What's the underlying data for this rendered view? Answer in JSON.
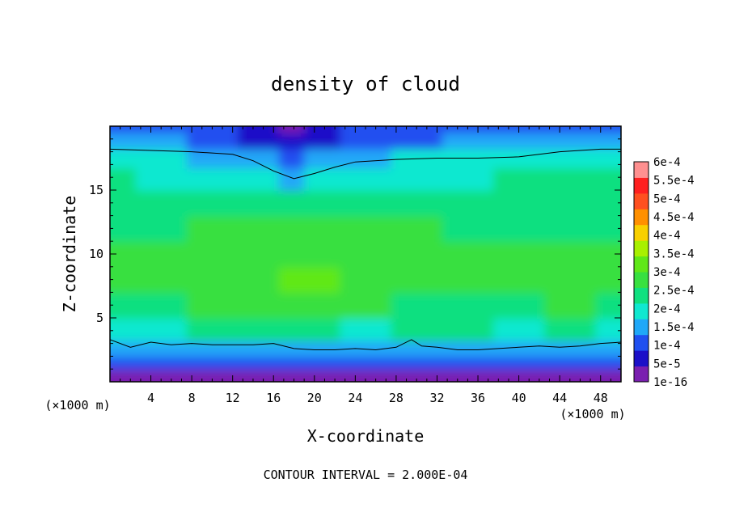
{
  "chart_data": {
    "type": "heatmap",
    "title": "density of cloud",
    "xlabel": "X-coordinate",
    "ylabel": "Z-coordinate",
    "x_unit_left": "(×1000 m)",
    "x_unit_right": "(×1000 m)",
    "footer": "CONTOUR INTERVAL = 2.000E-04",
    "xlim": [
      0,
      50
    ],
    "ylim": [
      0,
      20
    ],
    "x_ticks": [
      4,
      8,
      12,
      16,
      20,
      24,
      28,
      32,
      36,
      40,
      44,
      48
    ],
    "y_ticks": [
      5,
      10,
      15
    ],
    "colorbar": {
      "labels": [
        "1e-16",
        "5e-5",
        "1e-4",
        "1.5e-4",
        "2e-4",
        "2.5e-4",
        "3e-4",
        "3.5e-4",
        "4e-4",
        "4.5e-4",
        "5e-4",
        "5.5e-4",
        "6e-4"
      ],
      "values": [
        0,
        5e-05,
        0.0001,
        0.00015,
        0.0002,
        0.00025,
        0.0003,
        0.00035,
        0.0004,
        0.00045,
        0.0005,
        0.00055,
        0.0006
      ],
      "colors": [
        "#7a1fb0",
        "#1c10c8",
        "#2050f0",
        "#20a8f8",
        "#10e8d0",
        "#10e080",
        "#38e040",
        "#60e818",
        "#a8f000",
        "#f8d000",
        "#ff9000",
        "#ff5020",
        "#ff2020",
        "#ff9090"
      ]
    },
    "contour_levels": [
      0.0002
    ],
    "field_description_values": {
      "x": [
        0,
        5,
        10,
        15,
        18,
        20,
        25,
        30,
        35,
        40,
        45,
        50
      ],
      "z_rows": [
        {
          "z": 0.5,
          "values": [
            4e-05,
            3e-05,
            4e-05,
            4e-05,
            3e-05,
            4e-05,
            4e-05,
            3e-05,
            4e-05,
            4e-05,
            3e-05,
            4e-05
          ]
        },
        {
          "z": 1.5,
          "values": [
            0.00012,
            0.00011,
            0.00012,
            0.00012,
            0.00011,
            0.00012,
            0.00011,
            0.00012,
            0.00012,
            0.00011,
            0.00012,
            0.00012
          ]
        },
        {
          "z": 2.5,
          "values": [
            0.00018,
            0.00017,
            0.00018,
            0.00018,
            0.00017,
            0.00018,
            0.00018,
            0.00019,
            0.00018,
            0.00018,
            0.00018,
            0.00018
          ]
        },
        {
          "z": 4,
          "values": [
            0.00024,
            0.00024,
            0.00025,
            0.00025,
            0.00025,
            0.00025,
            0.00024,
            0.00025,
            0.00025,
            0.00024,
            0.00025,
            0.00024
          ]
        },
        {
          "z": 6,
          "values": [
            0.00028,
            0.00029,
            0.0003,
            0.0003,
            0.00031,
            0.00031,
            0.0003,
            0.00029,
            0.00029,
            0.00029,
            0.0003,
            0.00029
          ]
        },
        {
          "z": 8,
          "values": [
            0.0003,
            0.00032,
            0.00033,
            0.00032,
            0.00035,
            0.00036,
            0.00034,
            0.00032,
            0.00031,
            0.00031,
            0.00033,
            0.00031
          ]
        },
        {
          "z": 10,
          "values": [
            0.0003,
            0.00031,
            0.00032,
            0.00032,
            0.00033,
            0.00034,
            0.00033,
            0.00032,
            0.00031,
            0.00031,
            0.00031,
            0.0003
          ]
        },
        {
          "z": 12,
          "values": [
            0.00029,
            0.00029,
            0.0003,
            0.0003,
            0.0003,
            0.0003,
            0.0003,
            0.0003,
            0.00029,
            0.00029,
            0.00029,
            0.00029
          ]
        },
        {
          "z": 14,
          "values": [
            0.00027,
            0.00027,
            0.00027,
            0.00026,
            0.00025,
            0.00026,
            0.00027,
            0.00027,
            0.00027,
            0.00027,
            0.00027,
            0.00027
          ]
        },
        {
          "z": 16,
          "values": [
            0.00025,
            0.00024,
            0.00023,
            0.00021,
            0.00019,
            0.00021,
            0.00023,
            0.00024,
            0.00024,
            0.00025,
            0.00025,
            0.00025
          ]
        },
        {
          "z": 17.5,
          "values": [
            0.00022,
            0.00021,
            0.00019,
            0.00016,
            0.00013,
            0.00016,
            0.00019,
            0.0002,
            0.00021,
            0.00021,
            0.00022,
            0.00022
          ]
        },
        {
          "z": 19,
          "values": [
            0.00016,
            0.00015,
            0.00013,
            8e-05,
            6e-05,
            9e-05,
            0.00012,
            0.00014,
            0.00015,
            0.00015,
            0.00016,
            0.00016
          ]
        },
        {
          "z": 20,
          "values": [
            0.00014,
            0.00013,
            0.00011,
            5e-05,
            4e-05,
            6e-05,
            0.0001,
            0.00012,
            0.00013,
            0.00013,
            0.00014,
            0.00014
          ]
        }
      ]
    },
    "contour_line_upper": {
      "x": [
        0,
        4,
        8,
        12,
        14,
        16,
        18,
        20,
        22,
        24,
        28,
        32,
        36,
        40,
        44,
        48,
        50
      ],
      "z": [
        18.2,
        18.1,
        18.0,
        17.8,
        17.3,
        16.5,
        15.9,
        16.3,
        16.8,
        17.2,
        17.4,
        17.5,
        17.5,
        17.6,
        18.0,
        18.2,
        18.2
      ]
    },
    "contour_line_lower": {
      "x": [
        0,
        2,
        4,
        6,
        8,
        10,
        12,
        14,
        16,
        18,
        20,
        22,
        24,
        26,
        28,
        29.5,
        30.5,
        32,
        34,
        36,
        38,
        40,
        42,
        44,
        46,
        48,
        50
      ],
      "z": [
        3.3,
        2.7,
        3.1,
        2.9,
        3.0,
        2.9,
        2.9,
        2.9,
        3.0,
        2.6,
        2.5,
        2.5,
        2.6,
        2.5,
        2.7,
        3.3,
        2.8,
        2.7,
        2.5,
        2.5,
        2.6,
        2.7,
        2.8,
        2.7,
        2.8,
        3.0,
        3.1
      ]
    }
  }
}
